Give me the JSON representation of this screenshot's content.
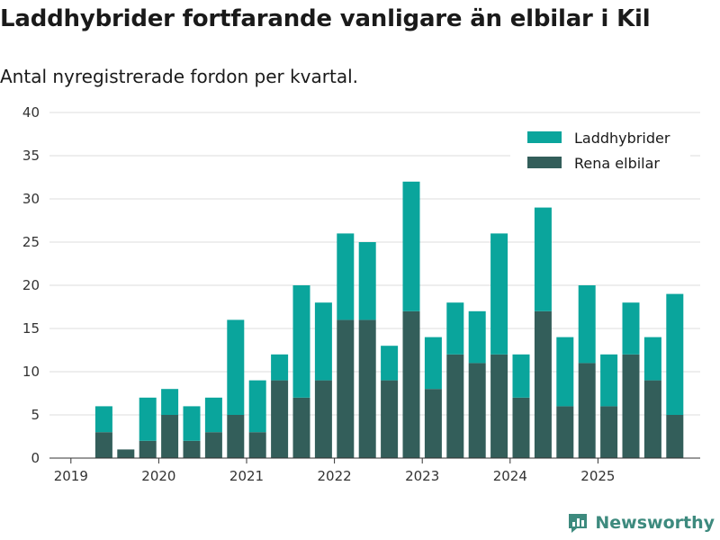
{
  "colors": {
    "phev": "#0aa59c",
    "bev": "#335e5a",
    "brand": "#3d8a7e",
    "grid": "#dddddd"
  },
  "chart_data": {
    "type": "bar",
    "stacked": true,
    "title": "Laddhybrider fortfarande vanligare än elbilar i Kil",
    "subtitle": "Antal nyregistrerade fordon per kvartal.",
    "xlabel": "",
    "ylabel": "",
    "ylim": [
      0,
      40
    ],
    "yticks": [
      0,
      5,
      10,
      15,
      20,
      25,
      30,
      35,
      40
    ],
    "grid": true,
    "legend_position": "top-right",
    "xtick_labels": [
      {
        "label": "2019",
        "index": 0
      },
      {
        "label": "2020",
        "index": 4
      },
      {
        "label": "2021",
        "index": 8
      },
      {
        "label": "2022",
        "index": 12
      },
      {
        "label": "2023",
        "index": 16
      },
      {
        "label": "2024",
        "index": 20
      },
      {
        "label": "2025",
        "index": 24
      }
    ],
    "categories": [
      "2019 Q1",
      "2019 Q2",
      "2019 Q3",
      "2019 Q4",
      "2020 Q1",
      "2020 Q2",
      "2020 Q3",
      "2020 Q4",
      "2021 Q1",
      "2021 Q2",
      "2021 Q3",
      "2021 Q4",
      "2022 Q1",
      "2022 Q2",
      "2022 Q3",
      "2022 Q4",
      "2023 Q1",
      "2023 Q2",
      "2023 Q3",
      "2023 Q4",
      "2024 Q1",
      "2024 Q2",
      "2024 Q3",
      "2024 Q4",
      "2025 Q1",
      "2025 Q2",
      "2025 Q3",
      "2025 Q4"
    ],
    "series": [
      {
        "name": "Rena elbilar",
        "color": "#335e5a",
        "values": [
          0,
          3,
          1,
          2,
          5,
          2,
          3,
          5,
          3,
          9,
          7,
          9,
          16,
          16,
          9,
          17,
          8,
          12,
          11,
          12,
          7,
          17,
          6,
          11,
          6,
          12,
          9,
          5
        ]
      },
      {
        "name": "Laddhybrider",
        "color": "#0aa59c",
        "values": [
          0,
          3,
          0,
          5,
          3,
          4,
          4,
          11,
          6,
          3,
          13,
          9,
          10,
          9,
          4,
          15,
          6,
          6,
          6,
          14,
          5,
          12,
          8,
          9,
          6,
          6,
          5,
          14
        ]
      }
    ]
  },
  "legend": {
    "items": [
      {
        "label": "Laddhybrider",
        "color": "#0aa59c"
      },
      {
        "label": "Rena elbilar",
        "color": "#335e5a"
      }
    ]
  },
  "brand": {
    "name": "Newsworthy",
    "icon": "newsworthy-logo-icon"
  }
}
